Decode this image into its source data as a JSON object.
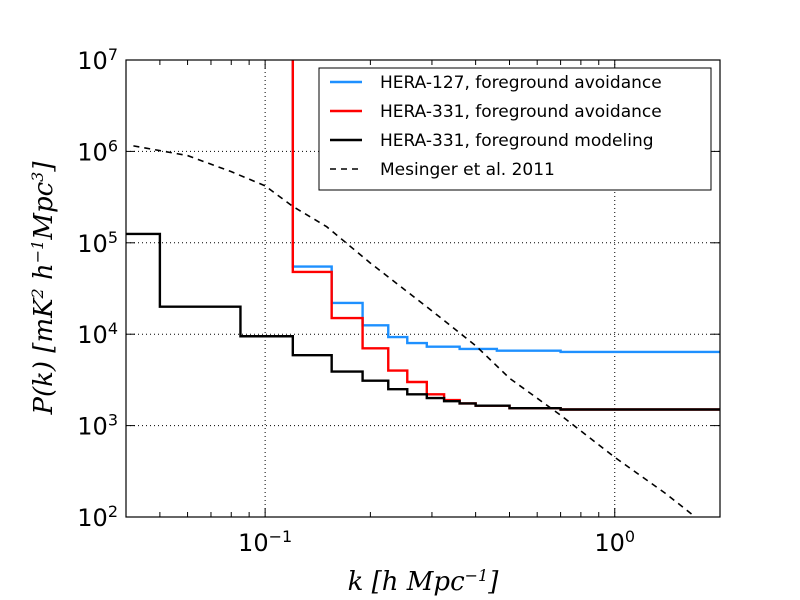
{
  "chart_data": {
    "type": "line",
    "xscale": "log",
    "yscale": "log",
    "xlim": [
      0.04,
      2.0
    ],
    "ylim": [
      100,
      10000000
    ],
    "xlabel": "k [h Mpc^-1]",
    "ylabel": "P(k) [mK^2 h^-1 Mpc^3]",
    "x_ticks": [
      {
        "value": 0.1,
        "base": "10",
        "exp": "−1"
      },
      {
        "value": 1.0,
        "base": "10",
        "exp": "0"
      }
    ],
    "y_ticks": [
      {
        "value": 100,
        "base": "10",
        "exp": "2"
      },
      {
        "value": 1000,
        "base": "10",
        "exp": "3"
      },
      {
        "value": 10000,
        "base": "10",
        "exp": "4"
      },
      {
        "value": 100000,
        "base": "10",
        "exp": "5"
      },
      {
        "value": 1000000,
        "base": "10",
        "exp": "6"
      },
      {
        "value": 10000000,
        "base": "10",
        "exp": "7"
      }
    ],
    "grid": true,
    "legend_position": "top-right",
    "series": [
      {
        "name": "HERA-127, foreground avoidance",
        "color": "#1e90ff",
        "style": "solid",
        "step": true,
        "x": [
          0.12,
          0.12,
          0.155,
          0.155,
          0.19,
          0.19,
          0.225,
          0.225,
          0.255,
          0.255,
          0.29,
          0.29,
          0.36,
          0.36,
          0.46,
          0.46,
          0.7,
          0.7,
          2.0
        ],
        "y": [
          10000000,
          55000,
          55000,
          22000,
          22000,
          12500,
          12500,
          9300,
          9300,
          8000,
          8000,
          7300,
          7300,
          6900,
          6900,
          6600,
          6600,
          6400,
          6400
        ]
      },
      {
        "name": "HERA-331, foreground avoidance",
        "color": "#ff0000",
        "style": "solid",
        "step": true,
        "x": [
          0.12,
          0.12,
          0.155,
          0.155,
          0.19,
          0.19,
          0.225,
          0.225,
          0.255,
          0.255,
          0.29,
          0.29,
          0.325,
          0.325,
          0.36,
          0.36,
          0.4,
          0.4,
          0.5,
          0.5,
          0.7,
          0.7,
          2.0
        ],
        "y": [
          10000000,
          48000,
          48000,
          15000,
          15000,
          7000,
          7000,
          4000,
          4000,
          3000,
          3000,
          2200,
          2200,
          1900,
          1900,
          1750,
          1750,
          1650,
          1650,
          1550,
          1550,
          1500,
          1500
        ]
      },
      {
        "name": "HERA-331, foreground modeling",
        "color": "#000000",
        "style": "solid",
        "step": true,
        "x": [
          0.04,
          0.05,
          0.05,
          0.085,
          0.085,
          0.12,
          0.12,
          0.155,
          0.155,
          0.19,
          0.19,
          0.225,
          0.225,
          0.255,
          0.255,
          0.29,
          0.29,
          0.325,
          0.325,
          0.36,
          0.36,
          0.4,
          0.4,
          0.5,
          0.5,
          0.7,
          0.7,
          2.0
        ],
        "y": [
          125000,
          125000,
          20000,
          20000,
          9500,
          9500,
          5900,
          5900,
          3900,
          3900,
          3100,
          3100,
          2500,
          2500,
          2200,
          2200,
          2000,
          2000,
          1850,
          1850,
          1750,
          1750,
          1650,
          1650,
          1550,
          1550,
          1500,
          1500
        ]
      },
      {
        "name": "Mesinger et al. 2011",
        "color": "#000000",
        "style": "dashed",
        "step": false,
        "x": [
          0.042,
          0.06,
          0.08,
          0.1,
          0.12,
          0.15,
          0.2,
          0.3,
          0.4,
          0.5,
          0.7,
          1.0,
          1.4,
          1.7
        ],
        "y": [
          1150000,
          900000,
          600000,
          420000,
          250000,
          150000,
          60000,
          18000,
          7500,
          3300,
          1300,
          450,
          180,
          100
        ]
      }
    ]
  }
}
